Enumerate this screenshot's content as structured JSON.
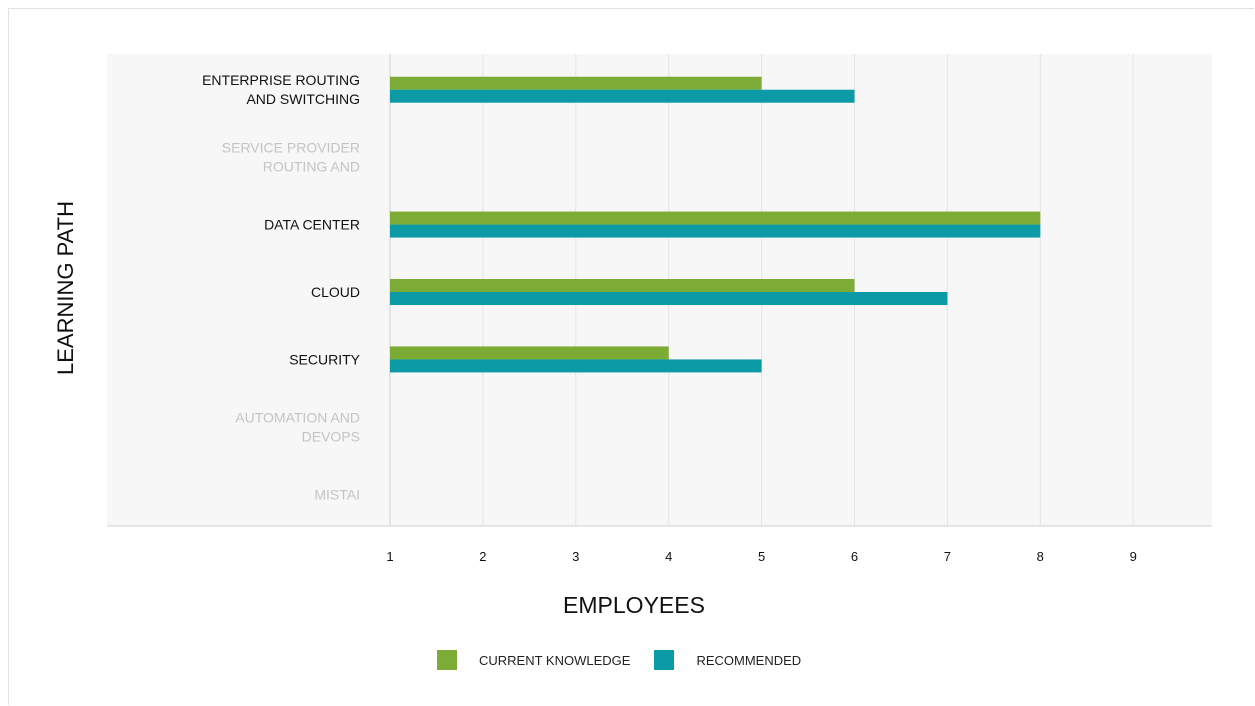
{
  "chart_data": {
    "type": "bar",
    "orientation": "horizontal",
    "ylabel": "LEARNING PATH",
    "xlabel": "EMPLOYEES",
    "categories": [
      {
        "lines": [
          "ENTERPRISE ROUTING",
          "AND SWITCHING"
        ],
        "active": true
      },
      {
        "lines": [
          "SERVICE PROVIDER",
          "ROUTING AND"
        ],
        "active": false
      },
      {
        "lines": [
          "DATA CENTER"
        ],
        "active": true
      },
      {
        "lines": [
          "CLOUD"
        ],
        "active": true
      },
      {
        "lines": [
          "SECURITY"
        ],
        "active": true
      },
      {
        "lines": [
          "AUTOMATION AND",
          "DEVOPS"
        ],
        "active": false
      },
      {
        "lines": [
          "MISTAI"
        ],
        "active": false
      }
    ],
    "series": [
      {
        "name": "CURRENT KNOWLEDGE",
        "color": "#7cab36",
        "values": [
          5,
          null,
          8,
          6,
          4,
          null,
          null
        ]
      },
      {
        "name": "RECOMMENDED",
        "color": "#0b9aa6",
        "values": [
          6,
          null,
          8,
          7,
          5,
          null,
          null
        ]
      }
    ],
    "xticks": [
      1,
      2,
      3,
      4,
      5,
      6,
      7,
      8,
      9
    ],
    "xlim": [
      1,
      9.85
    ],
    "grid": true,
    "legend_position": "bottom",
    "colors": {
      "active_label": "#111111",
      "inactive_label": "#c4c4c4",
      "plot_bg": "#f7f7f7",
      "grid": "#e4e4e4"
    }
  }
}
